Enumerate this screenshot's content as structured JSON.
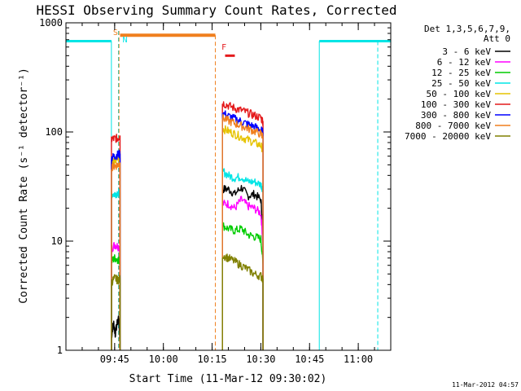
{
  "page": {
    "footer_stamp": "11-Mar-2012 04:57"
  },
  "legend": {
    "header_line1": "Det 1,3,5,6,7,9,",
    "header_line2": "Att 0",
    "placement": "right-outside"
  },
  "markers": {
    "s_label": "S",
    "n_label": "N",
    "f_label": "F",
    "colors": {
      "saa": "#f07f1e",
      "night": "#00e5e5",
      "flare": "#e41a1c"
    }
  },
  "chart_data": {
    "type": "line",
    "title": "HESSI Observing Summary Count Rates, Corrected",
    "xlabel": "Start Time (11-Mar-12 09:30:02)",
    "ylabel": "Corrected Count Rate (s⁻¹ detector⁻¹)",
    "yscale": "log",
    "ylim": [
      1,
      1000
    ],
    "xlim": [
      "09:30",
      "11:10"
    ],
    "x_ticks": [
      "09:45",
      "10:00",
      "10:15",
      "10:30",
      "10:45",
      "11:00"
    ],
    "y_ticks": [
      "1",
      "10",
      "100",
      "1000"
    ],
    "grid": false,
    "series": [
      {
        "name": "3 - 6 keV",
        "color": "#000000",
        "segments": [
          [
            [
              "09:44:00",
              1.3
            ],
            [
              "09:44:40",
              1.8
            ],
            [
              "09:45:10",
              1.4
            ],
            [
              "09:46:10",
              2.0
            ],
            [
              "09:46:40",
              1.2
            ]
          ],
          [
            [
              "10:18:10",
              30
            ],
            [
              "10:20:00",
              30
            ],
            [
              "10:22:00",
              27
            ],
            [
              "10:24:00",
              31
            ],
            [
              "10:26:00",
              26
            ],
            [
              "10:28:00",
              27
            ],
            [
              "10:30:00",
              24
            ],
            [
              "10:30:40",
              12
            ]
          ]
        ]
      },
      {
        "name": "6 - 12 keV",
        "color": "#ff00ff",
        "segments": [
          [
            [
              "09:44:00",
              8.5
            ],
            [
              "09:45:00",
              9.3
            ],
            [
              "09:46:00",
              9.0
            ],
            [
              "09:46:40",
              8.5
            ]
          ],
          [
            [
              "10:18:10",
              22
            ],
            [
              "10:20:00",
              22
            ],
            [
              "10:22:00",
              20
            ],
            [
              "10:24:00",
              24
            ],
            [
              "10:26:00",
              21
            ],
            [
              "10:28:00",
              20
            ],
            [
              "10:30:00",
              18
            ],
            [
              "10:30:40",
              9
            ]
          ]
        ]
      },
      {
        "name": "12 - 25 keV",
        "color": "#00cc00",
        "segments": [
          [
            [
              "09:44:00",
              6.5
            ],
            [
              "09:45:00",
              7.0
            ],
            [
              "09:46:00",
              6.8
            ],
            [
              "09:46:40",
              6.5
            ]
          ],
          [
            [
              "10:18:10",
              14
            ],
            [
              "10:20:00",
              13
            ],
            [
              "10:22:00",
              12.5
            ],
            [
              "10:24:00",
              13
            ],
            [
              "10:26:00",
              11.5
            ],
            [
              "10:28:00",
              11
            ],
            [
              "10:30:00",
              10.5
            ],
            [
              "10:30:40",
              6
            ]
          ]
        ]
      },
      {
        "name": "25 - 50 keV",
        "color": "#00e5e5",
        "segments": [
          [
            [
              "09:44:00",
              27
            ],
            [
              "09:45:00",
              27
            ],
            [
              "09:46:00",
              28
            ],
            [
              "09:46:40",
              27
            ]
          ],
          [
            [
              "10:18:10",
              44
            ],
            [
              "10:20:00",
              40
            ],
            [
              "10:22:00",
              38
            ],
            [
              "10:24:00",
              39
            ],
            [
              "10:26:00",
              35
            ],
            [
              "10:28:00",
              35
            ],
            [
              "10:30:00",
              33
            ],
            [
              "10:30:40",
              30
            ]
          ]
        ]
      },
      {
        "name": "50 - 100 keV",
        "color": "#e6c300",
        "segments": [
          [
            [
              "09:44:00",
              55
            ],
            [
              "09:45:00",
              54
            ],
            [
              "09:46:00",
              57
            ],
            [
              "09:46:40",
              58
            ]
          ],
          [
            [
              "10:18:10",
              108
            ],
            [
              "10:20:00",
              102
            ],
            [
              "10:22:00",
              96
            ],
            [
              "10:24:00",
              90
            ],
            [
              "10:26:00",
              85
            ],
            [
              "10:28:00",
              80
            ],
            [
              "10:30:00",
              75
            ],
            [
              "10:30:40",
              70
            ]
          ]
        ]
      },
      {
        "name": "100 - 300 keV",
        "color": "#e41a1c",
        "segments": [
          [
            [
              "09:44:00",
              86
            ],
            [
              "09:45:00",
              87
            ],
            [
              "09:46:00",
              88
            ],
            [
              "09:46:40",
              92
            ]
          ],
          [
            [
              "10:18:10",
              185
            ],
            [
              "10:20:00",
              175
            ],
            [
              "10:22:00",
              165
            ],
            [
              "10:24:00",
              158
            ],
            [
              "10:26:00",
              150
            ],
            [
              "10:28:00",
              142
            ],
            [
              "10:30:00",
              135
            ],
            [
              "10:30:40",
              125
            ]
          ]
        ]
      },
      {
        "name": "300 - 800 keV",
        "color": "#0000ff",
        "segments": [
          [
            [
              "09:44:00",
              58
            ],
            [
              "09:45:00",
              60
            ],
            [
              "09:46:00",
              62
            ],
            [
              "09:46:40",
              63
            ]
          ],
          [
            [
              "10:18:10",
              150
            ],
            [
              "10:20:00",
              140
            ],
            [
              "10:22:00",
              132
            ],
            [
              "10:24:00",
              125
            ],
            [
              "10:26:00",
              118
            ],
            [
              "10:28:00",
              112
            ],
            [
              "10:30:00",
              105
            ],
            [
              "10:30:40",
              98
            ]
          ]
        ]
      },
      {
        "name": "800 - 7000 keV",
        "color": "#f07f1e",
        "segments": [
          [
            [
              "09:44:00",
              48
            ],
            [
              "09:45:00",
              49
            ],
            [
              "09:46:00",
              50
            ],
            [
              "09:46:40",
              52
            ]
          ],
          [
            [
              "10:18:10",
              135
            ],
            [
              "10:20:00",
              127
            ],
            [
              "10:22:00",
              120
            ],
            [
              "10:24:00",
              114
            ],
            [
              "10:26:00",
              108
            ],
            [
              "10:28:00",
              102
            ],
            [
              "10:30:00",
              96
            ],
            [
              "10:30:40",
              90
            ]
          ]
        ]
      },
      {
        "name": "7000 - 20000 keV",
        "color": "#808000",
        "segments": [
          [
            [
              "09:44:00",
              4.2
            ],
            [
              "09:45:00",
              4.6
            ],
            [
              "09:46:00",
              4.4
            ],
            [
              "09:46:40",
              4.5
            ]
          ],
          [
            [
              "10:18:10",
              7.5
            ],
            [
              "10:20:00",
              7.0
            ],
            [
              "10:22:00",
              6.5
            ],
            [
              "10:24:00",
              6.0
            ],
            [
              "10:26:00",
              5.5
            ],
            [
              "10:28:00",
              5.0
            ],
            [
              "10:30:00",
              4.8
            ],
            [
              "10:30:40",
              4.5
            ]
          ]
        ]
      }
    ],
    "night_intervals": [
      [
        "09:30",
        "09:44"
      ],
      [
        "10:48",
        "11:10"
      ]
    ],
    "saa_interval": [
      "09:46:40",
      "10:16"
    ],
    "flare_interval": [
      "10:19",
      "10:22"
    ]
  }
}
